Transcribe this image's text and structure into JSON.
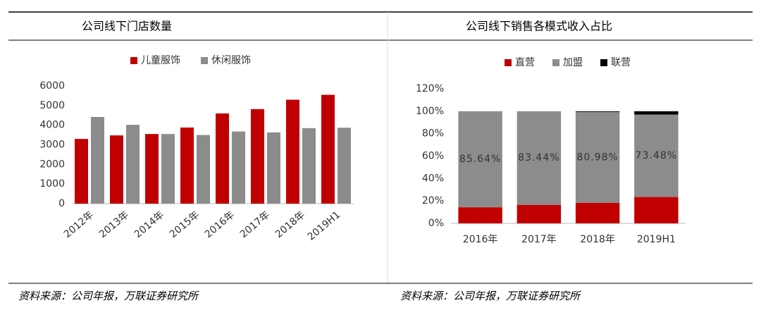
{
  "chart_data": [
    {
      "type": "bar",
      "title": "公司线下门店数量",
      "categories": [
        "2012年",
        "2013年",
        "2014年",
        "2015年",
        "2016年",
        "2017年",
        "2018年",
        "2019H1"
      ],
      "series": [
        {
          "name": "儿童服饰",
          "color": "#c00000",
          "values": [
            3300,
            3480,
            3550,
            3880,
            4600,
            4820,
            5300,
            5550
          ]
        },
        {
          "name": "休闲服饰",
          "color": "#8c8c8c",
          "values": [
            4420,
            4020,
            3550,
            3500,
            3680,
            3630,
            3850,
            3870
          ]
        }
      ],
      "ylim": [
        0,
        6000
      ],
      "yticks": [
        0,
        1000,
        2000,
        3000,
        4000,
        5000,
        6000
      ],
      "grid": false,
      "legend": "top",
      "source": "资料来源：公司年报，万联证券研究所"
    },
    {
      "type": "stacked_bar",
      "title": "公司线下销售各模式收入占比",
      "categories": [
        "2016年",
        "2017年",
        "2018年",
        "2019H1"
      ],
      "series": [
        {
          "name": "直营",
          "color": "#c00000",
          "values": [
            14.36,
            16.56,
            18.4,
            23.52
          ]
        },
        {
          "name": "加盟",
          "color": "#8c8c8c",
          "values": [
            85.64,
            83.44,
            80.98,
            73.48
          ],
          "value_labels": [
            "85.64%",
            "83.44%",
            "80.98%",
            "73.48%"
          ]
        },
        {
          "name": "联营",
          "color": "#000000",
          "values": [
            0,
            0,
            0.62,
            3.0
          ]
        }
      ],
      "ylim": [
        0,
        120
      ],
      "yticks": [
        {
          "value": 0,
          "label": "0%"
        },
        {
          "value": 20,
          "label": "20%"
        },
        {
          "value": 40,
          "label": "40%"
        },
        {
          "value": 60,
          "label": "60%"
        },
        {
          "value": 80,
          "label": "80%"
        },
        {
          "value": 100,
          "label": "100%"
        },
        {
          "value": 120,
          "label": "120%"
        }
      ],
      "grid": false,
      "legend": "top",
      "source": "资料来源：公司年报，万联证券研究所"
    }
  ]
}
